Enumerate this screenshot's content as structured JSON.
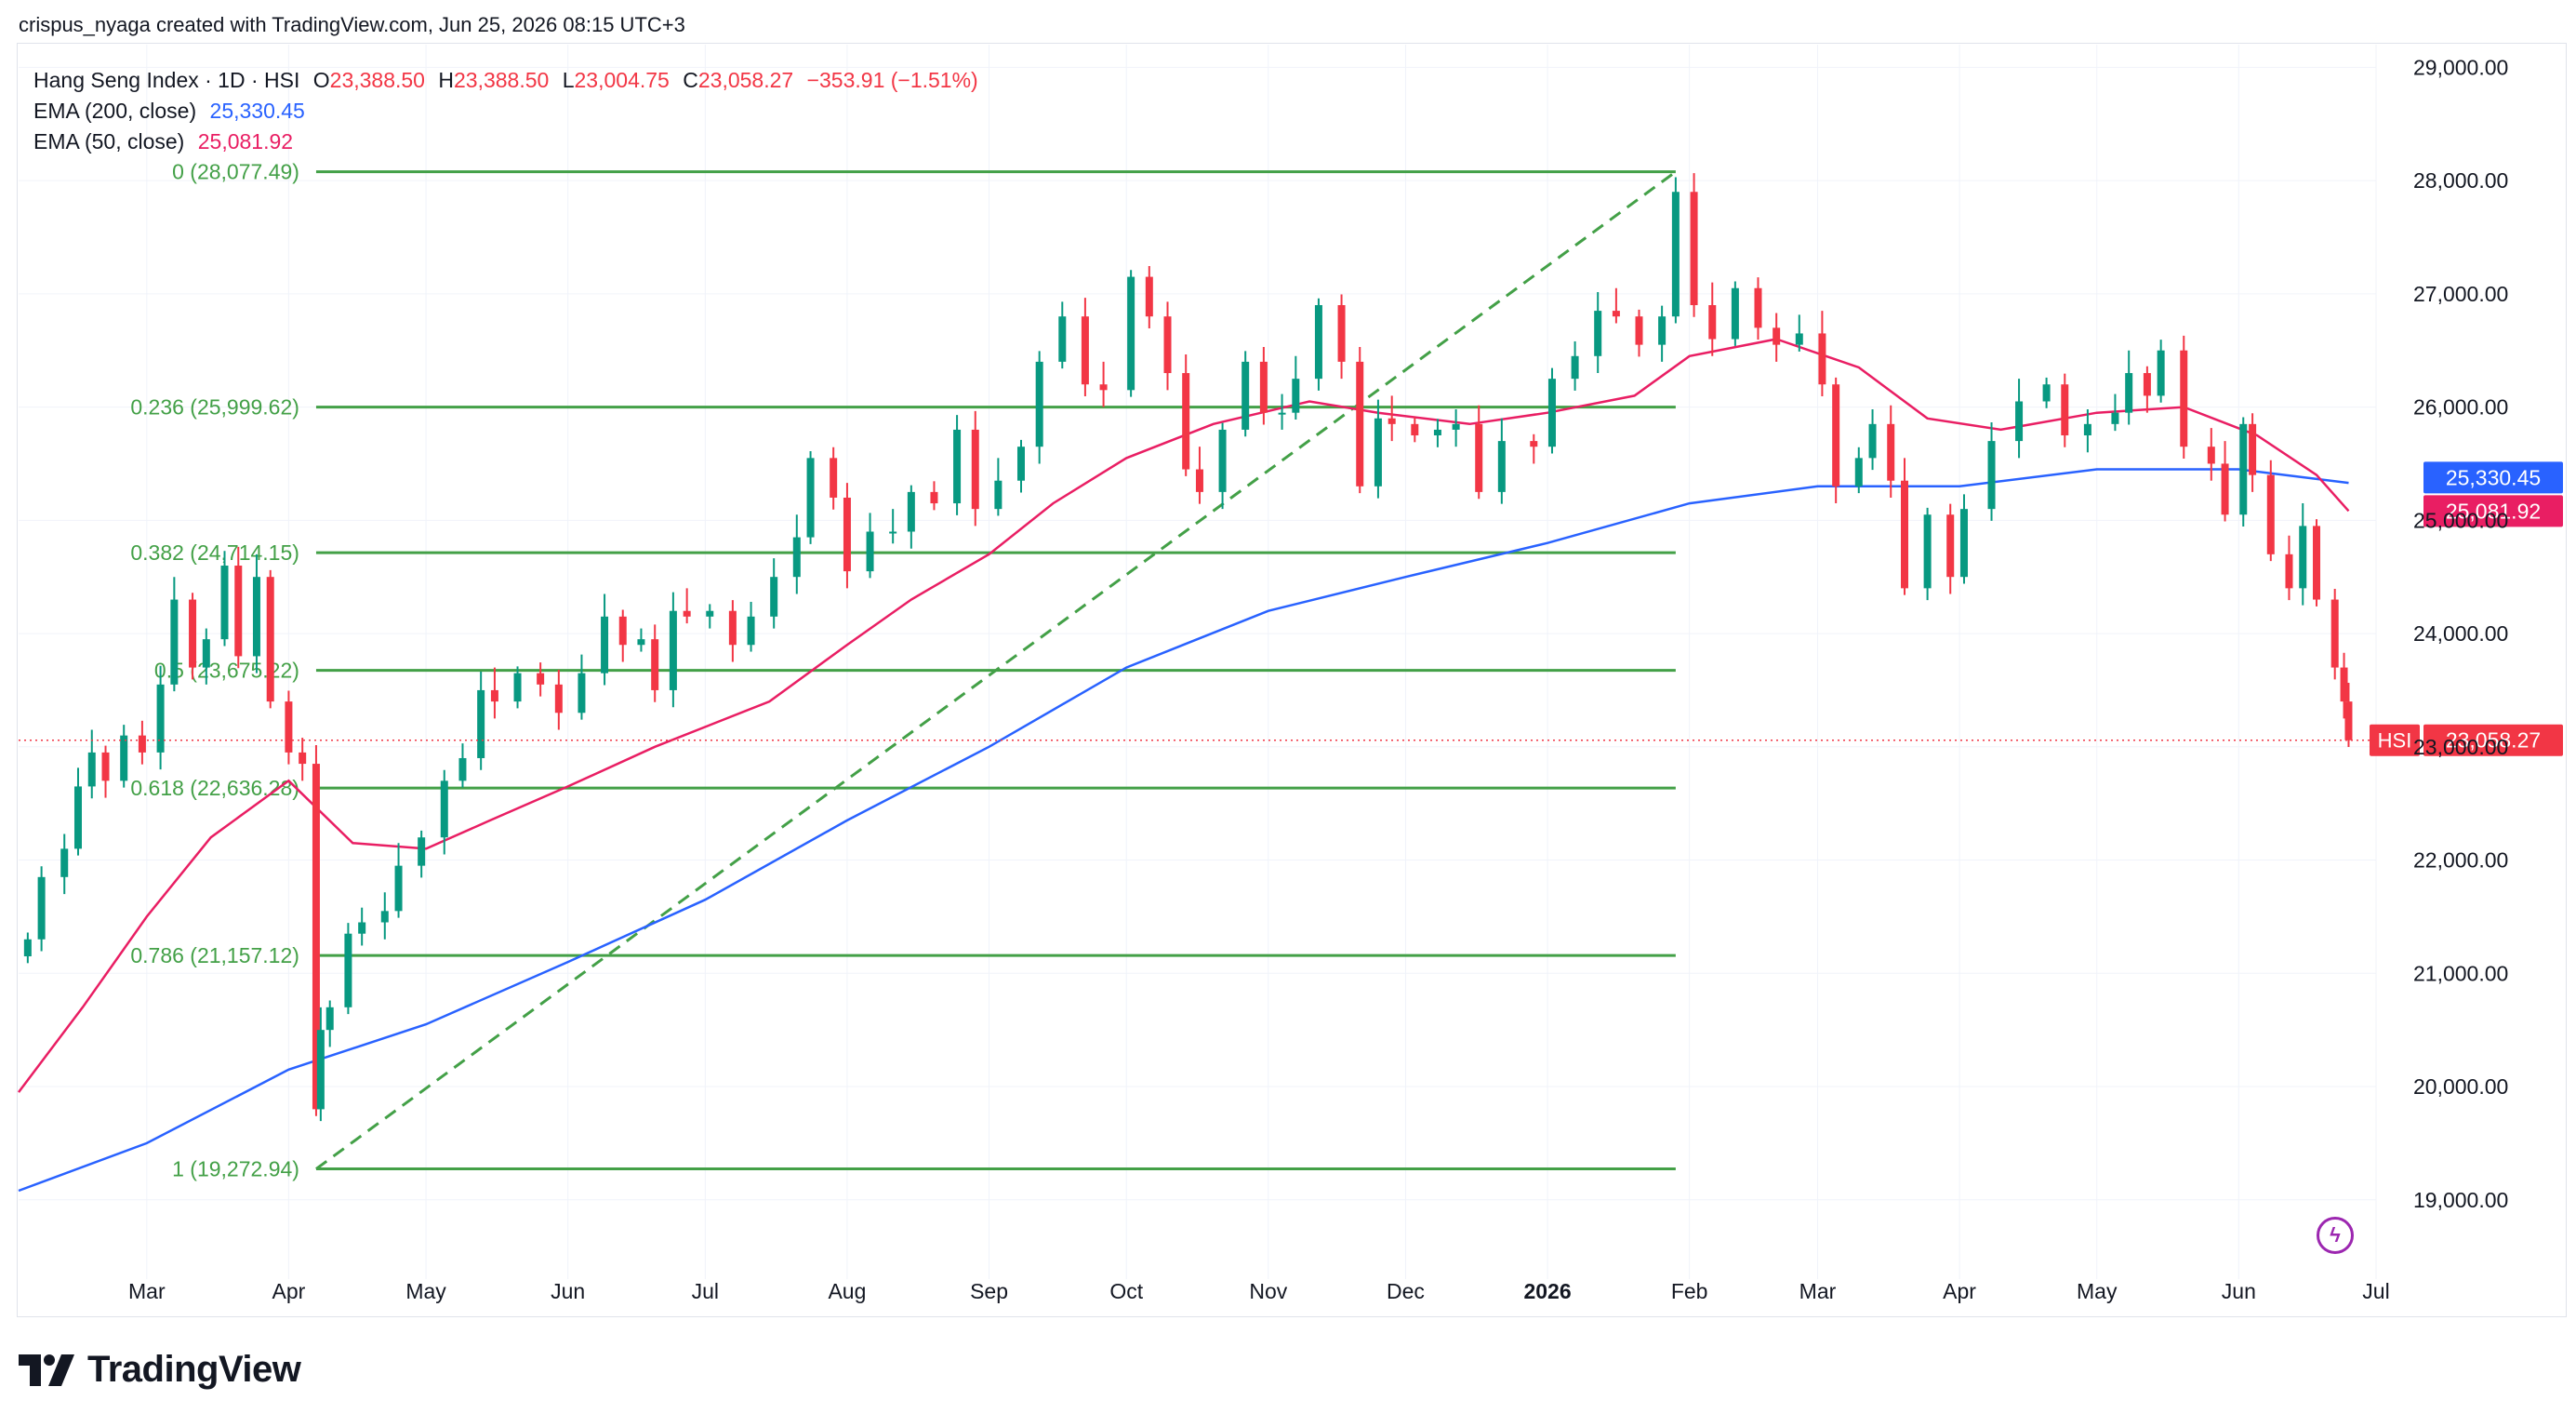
{
  "header": {
    "creator_line": "crispus_nyaga created with TradingView.com, Jun 25, 2026 08:15 UTC+3"
  },
  "legend": {
    "symbol_line": "Hang Seng Index · 1D · HSI",
    "ohlc": {
      "o_label": "O",
      "o": "23,388.50",
      "h_label": "H",
      "h": "23,388.50",
      "l_label": "L",
      "l": "23,004.75",
      "c_label": "C",
      "c": "23,058.27",
      "change": "−353.91 (−1.51%)"
    },
    "ema200_label": "EMA (200, close)",
    "ema200_value": "25,330.45",
    "ema50_label": "EMA (50, close)",
    "ema50_value": "25,081.92"
  },
  "brand": {
    "name": "TradingView"
  },
  "colors": {
    "up": "#089981",
    "down": "#f23645",
    "ema200": "#2962ff",
    "ema50": "#e91e63",
    "fib": "#43a047",
    "grid": "#f0f3fa",
    "axis_text": "#131722"
  },
  "chart_data": {
    "type": "candlestick",
    "title": "Hang Seng Index · 1D · HSI",
    "ylim": [
      18300,
      29200
    ],
    "y_ticks": [
      19000,
      20000,
      21000,
      22000,
      23000,
      24000,
      25000,
      26000,
      27000,
      28000,
      29000
    ],
    "y_tick_labels": [
      "19,000.00",
      "20,000.00",
      "21,000.00",
      "22,000.00",
      "23,000.00",
      "24,000.00",
      "25,000.00",
      "26,000.00",
      "27,000.00",
      "28,000.00",
      "29,000.00"
    ],
    "x_labels": [
      "Mar",
      "Apr",
      "May",
      "Jun",
      "Jul",
      "Aug",
      "Sep",
      "Oct",
      "Nov",
      "Dec",
      "2026",
      "Feb",
      "Mar",
      "Apr",
      "May",
      "Jun",
      "Jul"
    ],
    "x_label_dates": [
      "2025-03-01",
      "2025-04-01",
      "2025-05-01",
      "2025-06-01",
      "2025-07-01",
      "2025-08-01",
      "2025-09-01",
      "2025-10-01",
      "2025-11-01",
      "2025-12-01",
      "2026-01-01",
      "2026-02-01",
      "2026-03-01",
      "2026-04-01",
      "2026-05-01",
      "2026-06-01",
      "2026-07-01"
    ],
    "x_range": [
      "2025-02-01",
      "2026-07-01"
    ],
    "last_price": 23058.27,
    "last_price_label": "23,058.27",
    "last_price_tag": "HSI",
    "ema200_label": "25,330.45",
    "ema50_label": "25,081.92",
    "close_series": [
      [
        "2025-02-03",
        21300
      ],
      [
        "2025-02-06",
        21850
      ],
      [
        "2025-02-11",
        22100
      ],
      [
        "2025-02-14",
        22650
      ],
      [
        "2025-02-17",
        22950
      ],
      [
        "2025-02-20",
        22700
      ],
      [
        "2025-02-24",
        23100
      ],
      [
        "2025-02-28",
        22950
      ],
      [
        "2025-03-04",
        23550
      ],
      [
        "2025-03-07",
        24300
      ],
      [
        "2025-03-11",
        23700
      ],
      [
        "2025-03-14",
        23950
      ],
      [
        "2025-03-18",
        24600
      ],
      [
        "2025-03-21",
        23800
      ],
      [
        "2025-03-25",
        24500
      ],
      [
        "2025-03-28",
        23400
      ],
      [
        "2025-04-01",
        22950
      ],
      [
        "2025-04-04",
        22850
      ],
      [
        "2025-04-07",
        19800
      ],
      [
        "2025-04-08",
        20500
      ],
      [
        "2025-04-10",
        20700
      ],
      [
        "2025-04-14",
        21350
      ],
      [
        "2025-04-17",
        21450
      ],
      [
        "2025-04-22",
        21550
      ],
      [
        "2025-04-25",
        21950
      ],
      [
        "2025-04-30",
        22200
      ],
      [
        "2025-05-05",
        22700
      ],
      [
        "2025-05-09",
        22900
      ],
      [
        "2025-05-13",
        23500
      ],
      [
        "2025-05-16",
        23400
      ],
      [
        "2025-05-21",
        23650
      ],
      [
        "2025-05-26",
        23550
      ],
      [
        "2025-05-30",
        23300
      ],
      [
        "2025-06-04",
        23650
      ],
      [
        "2025-06-09",
        24150
      ],
      [
        "2025-06-13",
        23900
      ],
      [
        "2025-06-17",
        23950
      ],
      [
        "2025-06-20",
        23500
      ],
      [
        "2025-06-24",
        24200
      ],
      [
        "2025-06-27",
        24150
      ],
      [
        "2025-07-02",
        24200
      ],
      [
        "2025-07-07",
        23900
      ],
      [
        "2025-07-11",
        24150
      ],
      [
        "2025-07-16",
        24500
      ],
      [
        "2025-07-21",
        24850
      ],
      [
        "2025-07-24",
        25550
      ],
      [
        "2025-07-29",
        25200
      ],
      [
        "2025-08-01",
        24550
      ],
      [
        "2025-08-06",
        24900
      ],
      [
        "2025-08-11",
        24900
      ],
      [
        "2025-08-15",
        25250
      ],
      [
        "2025-08-20",
        25150
      ],
      [
        "2025-08-25",
        25800
      ],
      [
        "2025-08-29",
        25100
      ],
      [
        "2025-09-03",
        25350
      ],
      [
        "2025-09-08",
        25650
      ],
      [
        "2025-09-12",
        26400
      ],
      [
        "2025-09-17",
        26800
      ],
      [
        "2025-09-22",
        26200
      ],
      [
        "2025-09-26",
        26150
      ],
      [
        "2025-10-02",
        27150
      ],
      [
        "2025-10-06",
        26800
      ],
      [
        "2025-10-10",
        26300
      ],
      [
        "2025-10-14",
        25450
      ],
      [
        "2025-10-17",
        25250
      ],
      [
        "2025-10-22",
        25800
      ],
      [
        "2025-10-27",
        26400
      ],
      [
        "2025-10-31",
        25950
      ],
      [
        "2025-11-04",
        25950
      ],
      [
        "2025-11-07",
        26250
      ],
      [
        "2025-11-12",
        26900
      ],
      [
        "2025-11-17",
        26400
      ],
      [
        "2025-11-21",
        25300
      ],
      [
        "2025-11-25",
        25900
      ],
      [
        "2025-11-28",
        25850
      ],
      [
        "2025-12-03",
        25750
      ],
      [
        "2025-12-08",
        25800
      ],
      [
        "2025-12-12",
        25850
      ],
      [
        "2025-12-17",
        25250
      ],
      [
        "2025-12-22",
        25700
      ],
      [
        "2025-12-29",
        25650
      ],
      [
        "2026-01-02",
        26250
      ],
      [
        "2026-01-07",
        26450
      ],
      [
        "2026-01-12",
        26850
      ],
      [
        "2026-01-16",
        26800
      ],
      [
        "2026-01-21",
        26550
      ],
      [
        "2026-01-26",
        26800
      ],
      [
        "2026-01-29",
        27900
      ],
      [
        "2026-02-02",
        26900
      ],
      [
        "2026-02-06",
        26600
      ],
      [
        "2026-02-11",
        27050
      ],
      [
        "2026-02-16",
        26700
      ],
      [
        "2026-02-20",
        26550
      ],
      [
        "2026-02-25",
        26650
      ],
      [
        "2026-03-02",
        26200
      ],
      [
        "2026-03-05",
        25300
      ],
      [
        "2026-03-10",
        25550
      ],
      [
        "2026-03-13",
        25850
      ],
      [
        "2026-03-17",
        25350
      ],
      [
        "2026-03-20",
        24400
      ],
      [
        "2026-03-25",
        25050
      ],
      [
        "2026-03-30",
        24500
      ],
      [
        "2026-04-02",
        25100
      ],
      [
        "2026-04-08",
        25700
      ],
      [
        "2026-04-14",
        26050
      ],
      [
        "2026-04-20",
        26200
      ],
      [
        "2026-04-24",
        25750
      ],
      [
        "2026-04-29",
        25850
      ],
      [
        "2026-05-05",
        25950
      ],
      [
        "2026-05-08",
        26300
      ],
      [
        "2026-05-12",
        26100
      ],
      [
        "2026-05-15",
        26500
      ],
      [
        "2026-05-20",
        25650
      ],
      [
        "2026-05-26",
        25500
      ],
      [
        "2026-05-29",
        25050
      ],
      [
        "2026-06-02",
        25850
      ],
      [
        "2026-06-04",
        25400
      ],
      [
        "2026-06-08",
        24700
      ],
      [
        "2026-06-12",
        24400
      ],
      [
        "2026-06-15",
        24950
      ],
      [
        "2026-06-18",
        24300
      ],
      [
        "2026-06-22",
        23700
      ],
      [
        "2026-06-24",
        23400
      ],
      [
        "2026-06-25",
        23058.27
      ]
    ],
    "fibonacci": {
      "start": {
        "date": "2025-04-07",
        "price": 19272.94
      },
      "end": {
        "date": "2026-01-29",
        "price": 28077.49
      },
      "levels": [
        {
          "ratio": "0",
          "price": 28077.49,
          "label": "0 (28,077.49)"
        },
        {
          "ratio": "0.236",
          "price": 25999.62,
          "label": "0.236 (25,999.62)"
        },
        {
          "ratio": "0.382",
          "price": 24714.15,
          "label": "0.382 (24,714.15)"
        },
        {
          "ratio": "0.5",
          "price": 23675.22,
          "label": "0.5 (23,675.22)"
        },
        {
          "ratio": "0.618",
          "price": 22636.28,
          "label": "0.618 (22,636.28)"
        },
        {
          "ratio": "0.786",
          "price": 21157.12,
          "label": "0.786 (21,157.12)"
        },
        {
          "ratio": "1",
          "price": 19272.94,
          "label": "1 (19,272.94)"
        }
      ]
    },
    "ema200_series": [
      [
        "2025-02-01",
        19080
      ],
      [
        "2025-03-01",
        19500
      ],
      [
        "2025-04-01",
        20150
      ],
      [
        "2025-05-01",
        20550
      ],
      [
        "2025-06-01",
        21100
      ],
      [
        "2025-07-01",
        21650
      ],
      [
        "2025-08-01",
        22350
      ],
      [
        "2025-09-01",
        23000
      ],
      [
        "2025-10-01",
        23700
      ],
      [
        "2025-11-01",
        24200
      ],
      [
        "2025-12-01",
        24500
      ],
      [
        "2026-01-01",
        24800
      ],
      [
        "2026-02-01",
        25150
      ],
      [
        "2026-03-01",
        25300
      ],
      [
        "2026-04-01",
        25300
      ],
      [
        "2026-05-01",
        25450
      ],
      [
        "2026-06-01",
        25450
      ],
      [
        "2026-06-25",
        25330.45
      ]
    ],
    "ema50_series": [
      [
        "2025-02-01",
        19950
      ],
      [
        "2025-02-15",
        20700
      ],
      [
        "2025-03-01",
        21500
      ],
      [
        "2025-03-15",
        22200
      ],
      [
        "2025-04-01",
        22700
      ],
      [
        "2025-04-15",
        22150
      ],
      [
        "2025-05-01",
        22100
      ],
      [
        "2025-05-15",
        22350
      ],
      [
        "2025-06-01",
        22650
      ],
      [
        "2025-06-20",
        23000
      ],
      [
        "2025-07-15",
        23400
      ],
      [
        "2025-08-01",
        23900
      ],
      [
        "2025-08-15",
        24300
      ],
      [
        "2025-09-01",
        24700
      ],
      [
        "2025-09-15",
        25150
      ],
      [
        "2025-10-01",
        25550
      ],
      [
        "2025-10-20",
        25850
      ],
      [
        "2025-11-10",
        26050
      ],
      [
        "2025-11-25",
        25950
      ],
      [
        "2025-12-15",
        25850
      ],
      [
        "2026-01-01",
        25950
      ],
      [
        "2026-01-20",
        26100
      ],
      [
        "2026-02-01",
        26450
      ],
      [
        "2026-02-20",
        26600
      ],
      [
        "2026-03-10",
        26350
      ],
      [
        "2026-03-25",
        25900
      ],
      [
        "2026-04-10",
        25800
      ],
      [
        "2026-05-01",
        25950
      ],
      [
        "2026-05-20",
        26000
      ],
      [
        "2026-06-05",
        25750
      ],
      [
        "2026-06-18",
        25400
      ],
      [
        "2026-06-25",
        25081.92
      ]
    ]
  }
}
